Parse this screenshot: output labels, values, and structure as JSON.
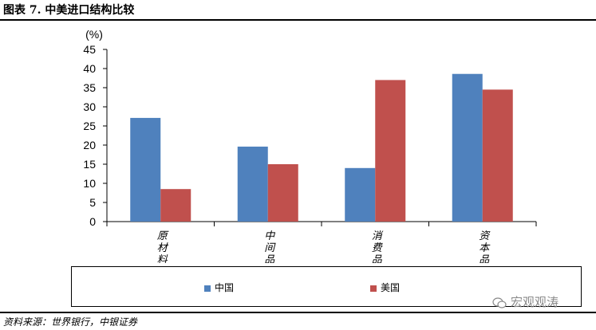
{
  "page": {
    "title": "图表 7. 中美进口结构比较",
    "source": "资料来源：世界银行，中银证券",
    "watermark": "宏观观涛",
    "watermark_icon": "wechat-icon"
  },
  "chart_data": {
    "type": "bar",
    "title": "",
    "unit_label": "(%)",
    "xlabel": "",
    "ylabel": "",
    "ylim": [
      0,
      45
    ],
    "yticks": [
      0,
      5,
      10,
      15,
      20,
      25,
      30,
      35,
      40,
      45
    ],
    "categories": [
      "原材料",
      "中间品",
      "消费品",
      "资本品"
    ],
    "series": [
      {
        "name": "中国",
        "color": "#4f81bd",
        "values": [
          27.1,
          19.6,
          14.0,
          38.6
        ]
      },
      {
        "name": "美国",
        "color": "#c0504d",
        "values": [
          8.5,
          15.0,
          37.0,
          34.5
        ]
      }
    ],
    "grid": false,
    "legend_position": "bottom"
  }
}
